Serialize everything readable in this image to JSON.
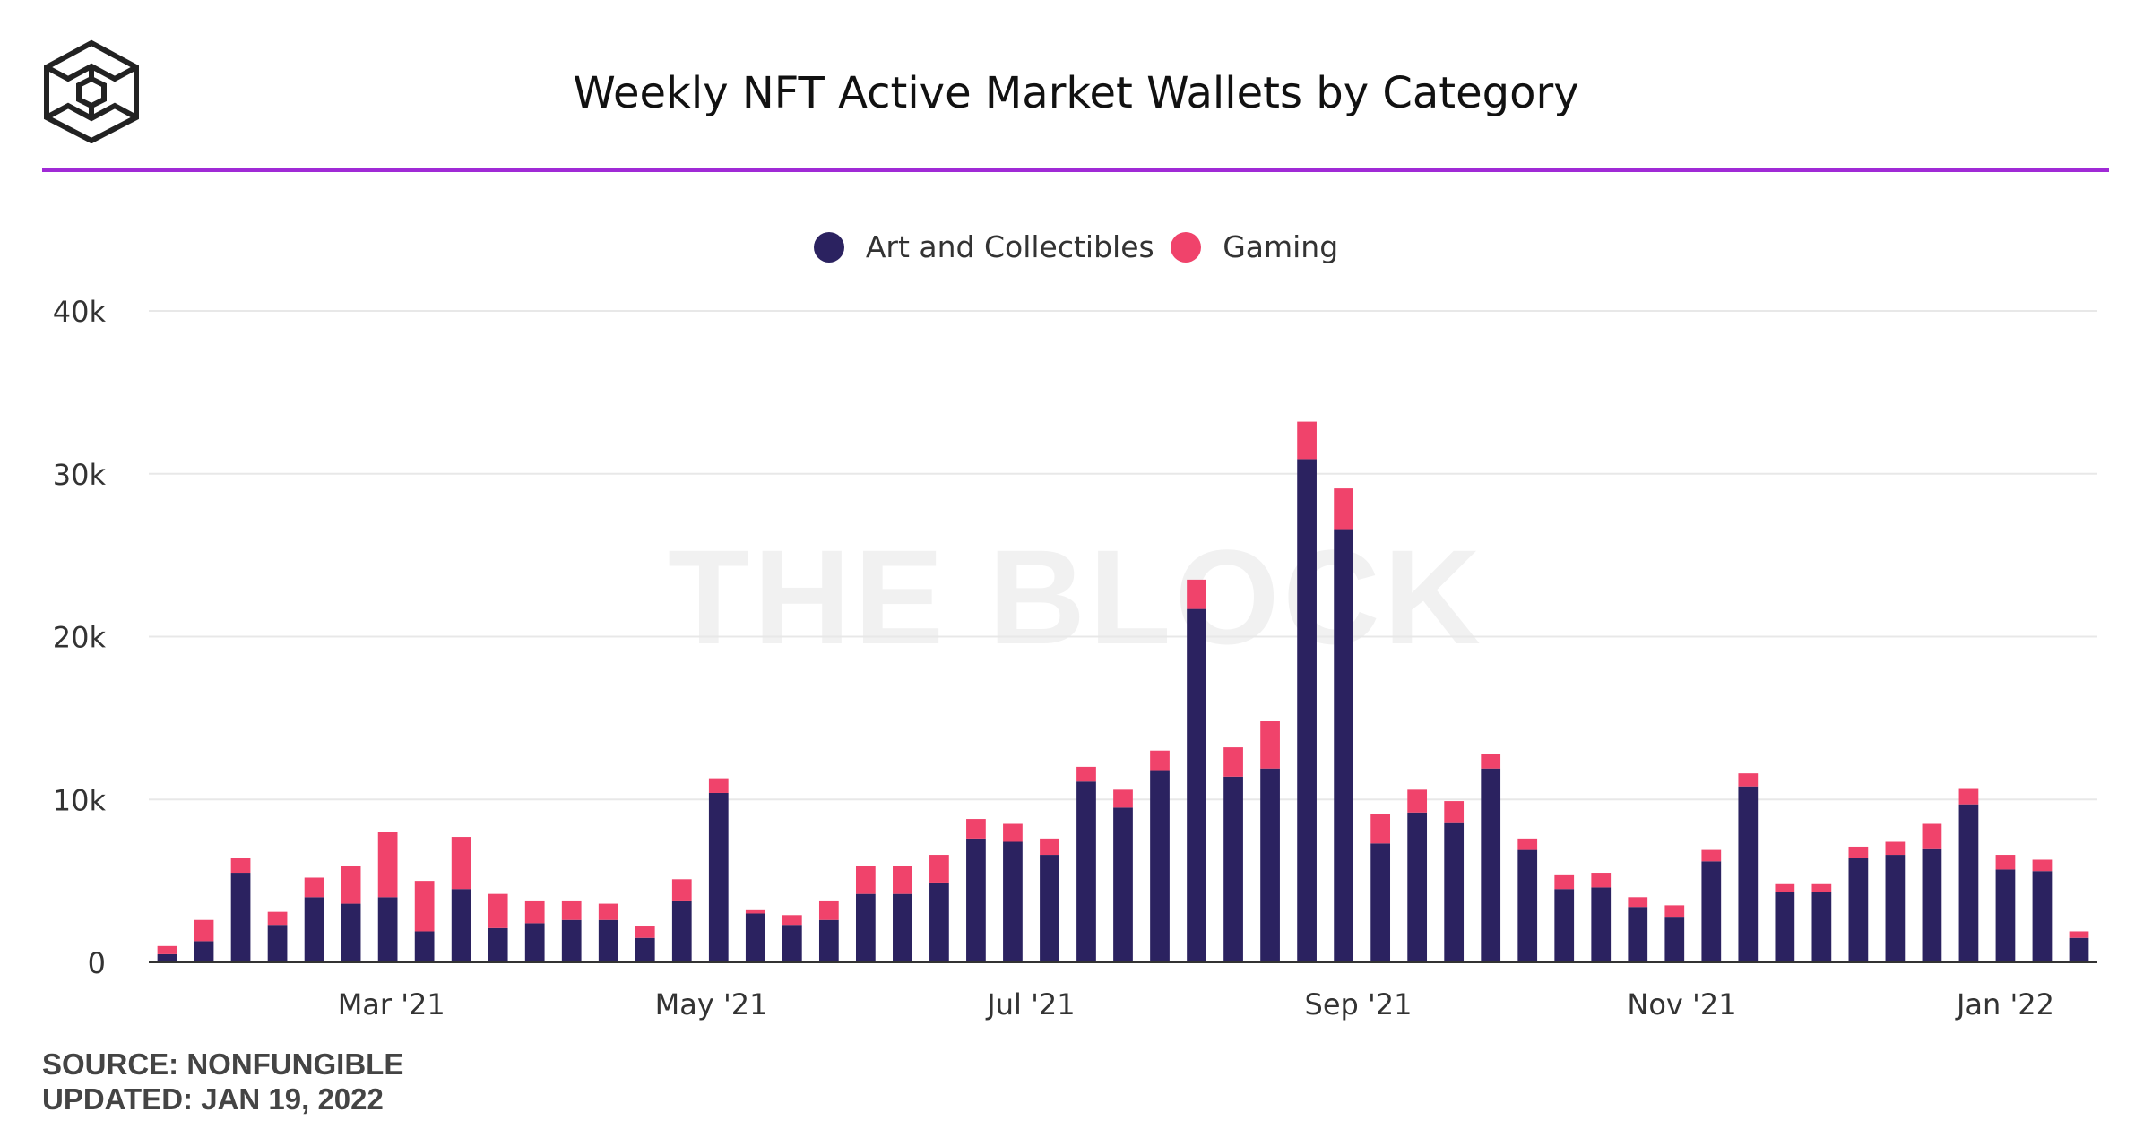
{
  "header": {
    "title": "Weekly NFT Active Market Wallets by Category",
    "logo_icon": "the-block-cube-logo-icon"
  },
  "watermark": "THE BLOCK",
  "footer": {
    "source": "SOURCE: NONFUNGIBLE",
    "updated": "UPDATED: JAN 19, 2022"
  },
  "colors": {
    "accent_rule": "#a02ad6",
    "art_and_collectibles": "#2b2260",
    "gaming": "#f0436b",
    "grid": "#e8e8e8"
  },
  "chart_data": {
    "type": "bar",
    "stacked": true,
    "title": "Weekly NFT Active Market Wallets by Category",
    "xlabel": "",
    "ylabel": "",
    "ylim": [
      0,
      40000
    ],
    "y_ticks": [
      "0",
      "10k",
      "20k",
      "30k",
      "40k"
    ],
    "x_ticks": [
      "Mar '21",
      "May '21",
      "Jul '21",
      "Sep '21",
      "Nov '21",
      "Jan '22"
    ],
    "legend": {
      "placement": "top-center"
    },
    "grid": true,
    "series": [
      {
        "name": "Art and Collectibles",
        "color": "#2b2260",
        "values": [
          500,
          1300,
          5500,
          2300,
          4000,
          3600,
          4000,
          1900,
          4500,
          2100,
          2400,
          2600,
          2600,
          1500,
          3800,
          10400,
          3000,
          2300,
          2600,
          4200,
          4200,
          4900,
          7600,
          7400,
          6600,
          11100,
          9500,
          11800,
          21700,
          11400,
          11900,
          30900,
          26600,
          7300,
          9200,
          8600,
          11900,
          6900,
          4500,
          4600,
          3400,
          2800,
          6200,
          10800,
          4300,
          4300,
          6400,
          6600,
          7000,
          9700,
          5700,
          5600,
          1500
        ]
      },
      {
        "name": "Gaming",
        "color": "#f0436b",
        "values": [
          500,
          1300,
          900,
          800,
          1200,
          2300,
          4000,
          3100,
          3200,
          2100,
          1400,
          1200,
          1000,
          700,
          1300,
          900,
          200,
          600,
          1200,
          1700,
          1700,
          1700,
          1200,
          1100,
          1000,
          900,
          1100,
          1200,
          1800,
          1800,
          2900,
          2300,
          2500,
          1800,
          1400,
          1300,
          900,
          700,
          900,
          900,
          600,
          700,
          700,
          800,
          500,
          500,
          700,
          800,
          1500,
          1000,
          900,
          700,
          400
        ]
      }
    ]
  }
}
